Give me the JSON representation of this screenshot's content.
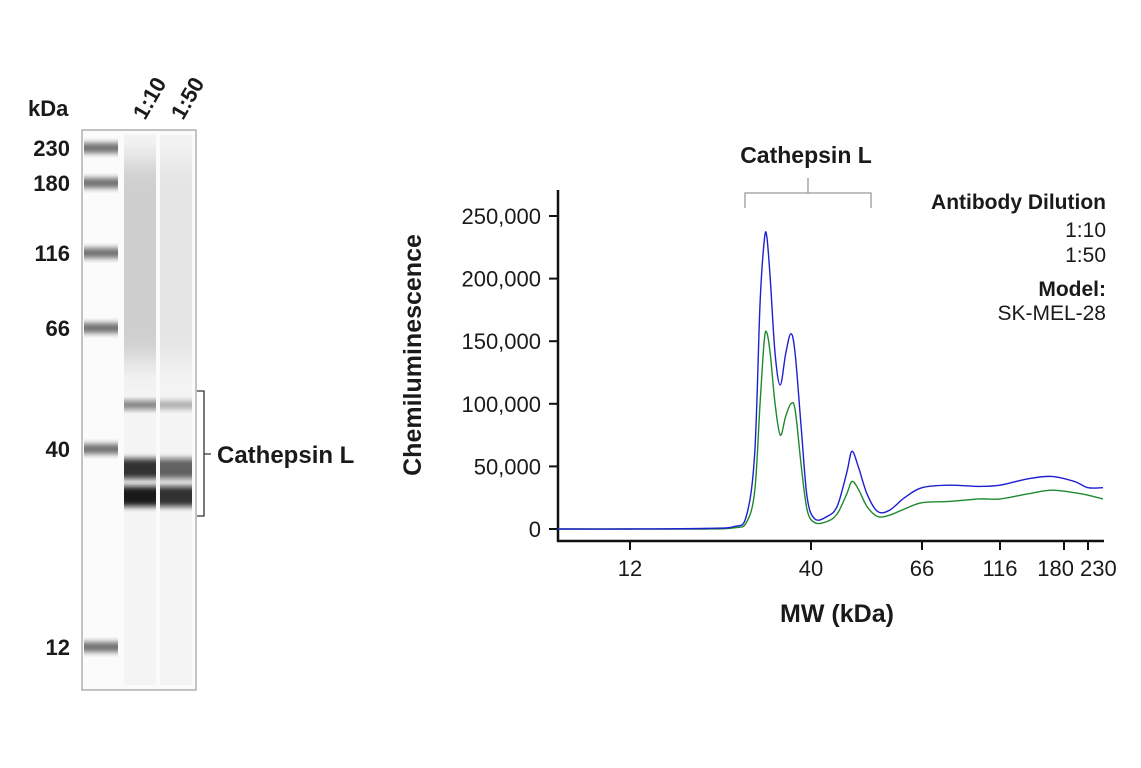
{
  "chart_data": [
    {
      "type": "gel",
      "unit_label": "kDa",
      "lane_labels": [
        "1:10",
        "1:50"
      ],
      "markers": [
        230,
        180,
        116,
        66,
        40,
        12
      ],
      "marker_labels": [
        "230",
        "180",
        "116",
        "66",
        "40",
        "12"
      ],
      "bracket_label": "Cathepsin L",
      "lanes": [
        {
          "name": "1:10",
          "bands": [
            {
              "kda": 48,
              "intensity": 0.55
            },
            {
              "kda": 35.5,
              "intensity": 0.85
            },
            {
              "kda": 30,
              "intensity": 0.95
            }
          ],
          "smear": 0.3
        },
        {
          "name": "1:50",
          "bands": [
            {
              "kda": 48,
              "intensity": 0.3
            },
            {
              "kda": 35.5,
              "intensity": 0.65
            },
            {
              "kda": 30,
              "intensity": 0.85
            }
          ],
          "smear": 0.12
        }
      ]
    },
    {
      "type": "line",
      "title": "Cathepsin L",
      "xlabel": "MW (kDa)",
      "ylabel": "Chemiluminescence",
      "xscale": "log (nonuniform)",
      "xticks": [
        12,
        40,
        66,
        116,
        180,
        230
      ],
      "xtick_labels": [
        "12",
        "40",
        "66",
        "116",
        "180",
        "230"
      ],
      "yticks": [
        0,
        50000,
        100000,
        150000,
        200000,
        250000
      ],
      "ytick_labels": [
        "0",
        "50,000",
        "100,000",
        "150,000",
        "200,000",
        "250,000"
      ],
      "ylim": [
        0,
        250000
      ],
      "grid": false,
      "legend": {
        "title": "Antibody Dilution",
        "placement": "top-right",
        "model_label": "Model:",
        "model_value": "SK-MEL-28"
      },
      "x": [
        7.4,
        12,
        20,
        24,
        26,
        27.5,
        28.5,
        29.3,
        29.8,
        30.5,
        31.5,
        32.6,
        33.8,
        35,
        36,
        37.5,
        39,
        40.7,
        43,
        45,
        47,
        48.1,
        49.5,
        51.5,
        54,
        57,
        61,
        66,
        80,
        100,
        116,
        140,
        165,
        200,
        230,
        268
      ],
      "series": [
        {
          "name": "1:10",
          "color": "#1f1fd0",
          "legend_color": "#3a4fa0",
          "values": [
            0,
            0,
            500,
            2000,
            10000,
            60000,
            180000,
            230000,
            234000,
            200000,
            140000,
            115000,
            140000,
            156000,
            140000,
            80000,
            25000,
            8000,
            10000,
            18000,
            45000,
            62000,
            50000,
            28000,
            14000,
            15000,
            25000,
            33000,
            35000,
            34000,
            35000,
            40000,
            42000,
            38000,
            33000,
            33000
          ]
        },
        {
          "name": "1:50",
          "color": "#1e8a2e",
          "legend_color": "#1e8a3a",
          "values": [
            0,
            0,
            0,
            1000,
            5000,
            30000,
            100000,
            150000,
            157000,
            140000,
            100000,
            75000,
            90000,
            100000,
            95000,
            50000,
            15000,
            5000,
            6000,
            12000,
            28000,
            38000,
            32000,
            18000,
            10000,
            11000,
            16000,
            21000,
            22000,
            24000,
            24000,
            28000,
            31000,
            29000,
            27000,
            24000
          ]
        }
      ]
    }
  ]
}
